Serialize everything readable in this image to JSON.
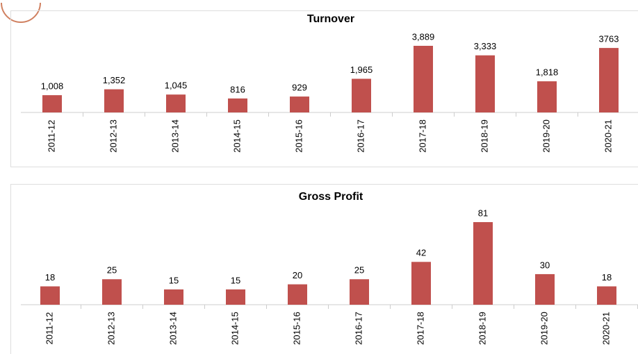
{
  "chart_data": [
    {
      "type": "bar",
      "title": "Turnover",
      "color": "#c0504d",
      "categories": [
        "2011-12",
        "2012-13",
        "2013-14",
        "2014-15",
        "2015-16",
        "2016-17",
        "2017-18",
        "2018-19",
        "2019-20",
        "2020-21"
      ],
      "values": [
        1008,
        1352,
        1045,
        816,
        929,
        1965,
        3889,
        3333,
        1818,
        3763
      ],
      "value_labels": [
        "1,008",
        "1,352",
        "1,045",
        "816",
        "929",
        "1,965",
        "3,889",
        "3,333",
        "1,818",
        "3763"
      ]
    },
    {
      "type": "bar",
      "title": "Gross Profit",
      "color": "#c0504d",
      "categories": [
        "2011-12",
        "2012-13",
        "2013-14",
        "2014-15",
        "2015-16",
        "2016-17",
        "2017-18",
        "2018-19",
        "2019-20",
        "2020-21"
      ],
      "values": [
        18,
        25,
        15,
        15,
        20,
        25,
        42,
        81,
        30,
        18
      ]
    }
  ]
}
